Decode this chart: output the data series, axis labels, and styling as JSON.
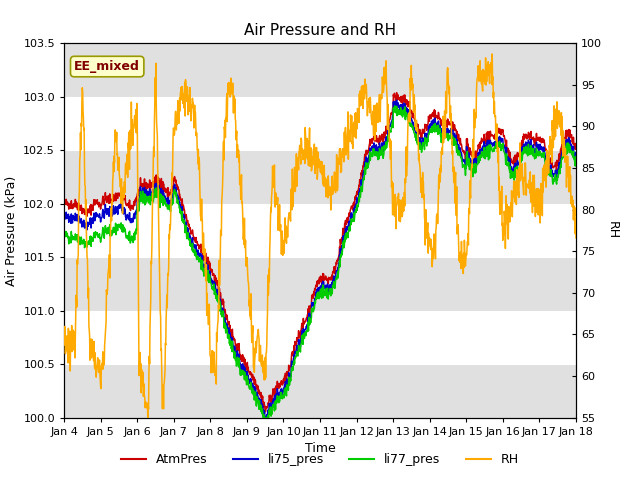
{
  "title": "Air Pressure and RH",
  "xlabel": "Time",
  "ylabel_left": "Air Pressure (kPa)",
  "ylabel_right": "RH",
  "annotation": "EE_mixed",
  "ylim_left": [
    100.0,
    103.5
  ],
  "ylim_right": [
    55,
    100
  ],
  "yticks_left": [
    100.0,
    100.5,
    101.0,
    101.5,
    102.0,
    102.5,
    103.0,
    103.5
  ],
  "yticks_right": [
    55,
    60,
    65,
    70,
    75,
    80,
    85,
    90,
    95,
    100
  ],
  "xtick_labels": [
    "Jan 4",
    "Jan 5",
    "Jan 6",
    "Jan 7",
    "Jan 8",
    "Jan 9",
    "Jan 10",
    "Jan 11",
    "Jan 12",
    "Jan 13",
    "Jan 14",
    "Jan 15",
    "Jan 16",
    "Jan 17",
    "Jan 18"
  ],
  "colors": {
    "AtmPres": "#cc0000",
    "li75_pres": "#0000cc",
    "li77_pres": "#00cc00",
    "RH": "#ffaa00"
  },
  "legend_labels": [
    "AtmPres",
    "li75_pres",
    "li77_pres",
    "RH"
  ],
  "figure_bg": "#ffffff",
  "plot_bg": "#ffffff",
  "band_color": "#e0e0e0",
  "grid_color": "#ffffff",
  "annotation_bg": "#ffffcc",
  "annotation_fg": "#800000",
  "annotation_border": "#999900"
}
